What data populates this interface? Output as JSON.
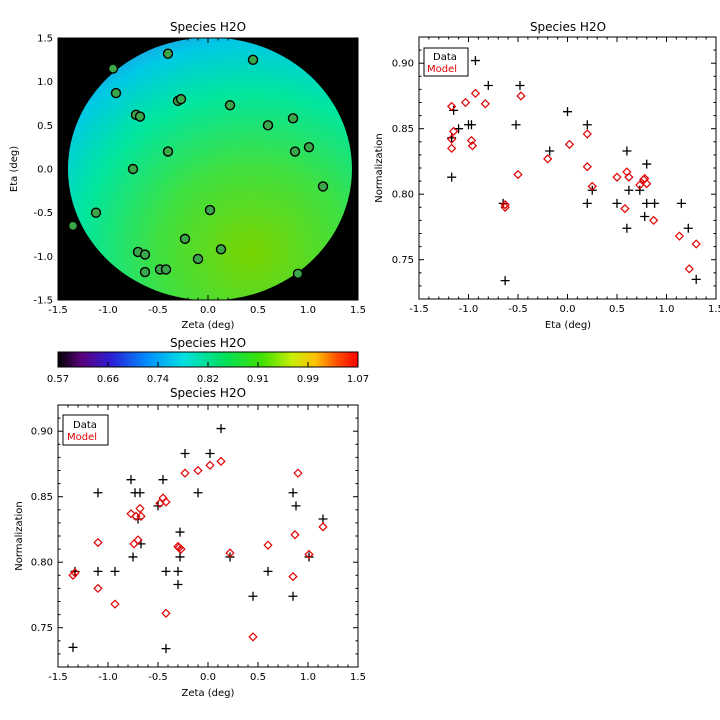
{
  "colors": {
    "data": "#000000",
    "model": "#e00000",
    "frame": "#000000"
  },
  "chart_data": [
    {
      "id": "map",
      "type": "heatmap",
      "title": "Species H2O",
      "xlabel": "Zeta (deg)",
      "ylabel": "Eta (deg)",
      "xlim": [
        -1.5,
        1.5
      ],
      "ylim": [
        -1.5,
        1.5
      ],
      "xticks": [
        "-1.5",
        "-1.0",
        "-0.5",
        "0.0",
        "0.5",
        "1.0",
        "1.5"
      ],
      "yticks": [
        "-1.5",
        "-1.0",
        "-0.5",
        "0.0",
        "0.5",
        "1.0",
        "1.5"
      ],
      "background": "black",
      "field_description": "normalization interpolated over the field, radius ~1.4 deg",
      "points": [
        [
          -1.35,
          -0.65
        ],
        [
          -1.12,
          -0.5
        ],
        [
          -0.95,
          1.15
        ],
        [
          -0.92,
          0.87
        ],
        [
          -0.75,
          0.0
        ],
        [
          -0.72,
          0.62
        ],
        [
          -0.68,
          0.6
        ],
        [
          -0.7,
          -0.95
        ],
        [
          -0.63,
          -0.98
        ],
        [
          -0.63,
          -1.18
        ],
        [
          -0.48,
          -1.15
        ],
        [
          -0.42,
          -1.15
        ],
        [
          -0.4,
          1.32
        ],
        [
          -0.4,
          0.2
        ],
        [
          -0.3,
          0.78
        ],
        [
          -0.27,
          0.8
        ],
        [
          -0.23,
          -0.8
        ],
        [
          -0.1,
          -1.03
        ],
        [
          0.02,
          -0.47
        ],
        [
          0.13,
          -0.92
        ],
        [
          0.22,
          0.73
        ],
        [
          0.45,
          1.25
        ],
        [
          0.6,
          0.5
        ],
        [
          0.85,
          0.58
        ],
        [
          0.87,
          0.2
        ],
        [
          1.01,
          0.25
        ],
        [
          1.15,
          -0.2
        ],
        [
          0.9,
          -1.2
        ]
      ]
    },
    {
      "id": "colorbar",
      "type": "colorbar",
      "title": "Species H2O",
      "range": [
        0.57,
        1.07
      ],
      "ticks": [
        "0.57",
        "0.66",
        "0.74",
        "0.82",
        "0.91",
        "0.99",
        "1.07"
      ]
    },
    {
      "id": "eta",
      "type": "scatter",
      "title": "Species H2O",
      "xlabel": "Eta (deg)",
      "ylabel": "Normalization",
      "xlim": [
        -1.5,
        1.5
      ],
      "ylim": [
        0.72,
        0.92
      ],
      "xticks": [
        "-1.5",
        "-1.0",
        "-0.5",
        "0.0",
        "0.5",
        "1.0",
        "1.5"
      ],
      "yticks": [
        "0.75",
        "0.80",
        "0.85",
        "0.90"
      ],
      "legend": [
        "Data",
        "Model"
      ],
      "series": [
        {
          "name": "Data",
          "marker": "plus",
          "points": [
            [
              -1.17,
              0.843
            ],
            [
              -1.17,
              0.813
            ],
            [
              -1.15,
              0.864
            ],
            [
              -1.1,
              0.85
            ],
            [
              -1.0,
              0.853
            ],
            [
              -0.97,
              0.853
            ],
            [
              -0.93,
              0.902
            ],
            [
              -0.8,
              0.883
            ],
            [
              -0.52,
              0.853
            ],
            [
              -0.48,
              0.883
            ],
            [
              -0.65,
              0.793
            ],
            [
              -0.63,
              0.734
            ],
            [
              0.0,
              0.863
            ],
            [
              -0.18,
              0.833
            ],
            [
              0.2,
              0.853
            ],
            [
              0.2,
              0.793
            ],
            [
              0.25,
              0.803
            ],
            [
              0.5,
              0.793
            ],
            [
              0.6,
              0.833
            ],
            [
              0.6,
              0.774
            ],
            [
              0.62,
              0.803
            ],
            [
              0.73,
              0.803
            ],
            [
              0.78,
              0.783
            ],
            [
              0.8,
              0.823
            ],
            [
              0.8,
              0.793
            ],
            [
              0.88,
              0.793
            ],
            [
              1.15,
              0.793
            ],
            [
              1.22,
              0.774
            ],
            [
              1.3,
              0.735
            ]
          ]
        },
        {
          "name": "Model",
          "marker": "diamond",
          "points": [
            [
              -1.17,
              0.867
            ],
            [
              -1.15,
              0.848
            ],
            [
              -1.17,
              0.835
            ],
            [
              -1.17,
              0.842
            ],
            [
              -1.03,
              0.87
            ],
            [
              -0.97,
              0.841
            ],
            [
              -0.96,
              0.837
            ],
            [
              -0.93,
              0.877
            ],
            [
              -0.83,
              0.869
            ],
            [
              -0.5,
              0.815
            ],
            [
              -0.47,
              0.875
            ],
            [
              -0.63,
              0.79
            ],
            [
              -0.63,
              0.792
            ],
            [
              0.02,
              0.838
            ],
            [
              -0.2,
              0.827
            ],
            [
              0.2,
              0.846
            ],
            [
              0.2,
              0.821
            ],
            [
              0.25,
              0.806
            ],
            [
              0.5,
              0.813
            ],
            [
              0.58,
              0.789
            ],
            [
              0.6,
              0.817
            ],
            [
              0.62,
              0.813
            ],
            [
              0.73,
              0.807
            ],
            [
              0.77,
              0.811
            ],
            [
              0.78,
              0.812
            ],
            [
              0.8,
              0.808
            ],
            [
              0.87,
              0.78
            ],
            [
              1.13,
              0.768
            ],
            [
              1.23,
              0.743
            ],
            [
              1.3,
              0.762
            ]
          ]
        }
      ]
    },
    {
      "id": "zeta",
      "type": "scatter",
      "title": "Species H2O",
      "xlabel": "Zeta (deg)",
      "ylabel": "Normalization",
      "xlim": [
        -1.5,
        1.5
      ],
      "ylim": [
        0.72,
        0.92
      ],
      "xticks": [
        "-1.5",
        "-1.0",
        "-0.5",
        "0.0",
        "0.5",
        "1.0",
        "1.5"
      ],
      "yticks": [
        "0.75",
        "0.80",
        "0.85",
        "0.90"
      ],
      "legend": [
        "Data",
        "Model"
      ],
      "series": [
        {
          "name": "Data",
          "marker": "plus",
          "points": [
            [
              -1.35,
              0.735
            ],
            [
              -1.33,
              0.793
            ],
            [
              -1.1,
              0.853
            ],
            [
              -1.1,
              0.793
            ],
            [
              -0.93,
              0.793
            ],
            [
              -0.77,
              0.863
            ],
            [
              -0.75,
              0.804
            ],
            [
              -0.73,
              0.853
            ],
            [
              -0.7,
              0.833
            ],
            [
              -0.68,
              0.853
            ],
            [
              -0.67,
              0.814
            ],
            [
              -0.5,
              0.843
            ],
            [
              -0.45,
              0.863
            ],
            [
              -0.42,
              0.793
            ],
            [
              -0.42,
              0.734
            ],
            [
              -0.3,
              0.783
            ],
            [
              -0.3,
              0.793
            ],
            [
              -0.28,
              0.823
            ],
            [
              -0.28,
              0.804
            ],
            [
              -0.23,
              0.883
            ],
            [
              -0.1,
              0.853
            ],
            [
              0.02,
              0.883
            ],
            [
              0.13,
              0.902
            ],
            [
              0.22,
              0.804
            ],
            [
              0.45,
              0.774
            ],
            [
              0.6,
              0.793
            ],
            [
              0.85,
              0.853
            ],
            [
              0.85,
              0.774
            ],
            [
              0.88,
              0.843
            ],
            [
              1.01,
              0.804
            ],
            [
              1.15,
              0.833
            ]
          ]
        },
        {
          "name": "Model",
          "marker": "diamond",
          "points": [
            [
              -1.35,
              0.79
            ],
            [
              -1.33,
              0.792
            ],
            [
              -1.1,
              0.815
            ],
            [
              -1.1,
              0.78
            ],
            [
              -0.93,
              0.768
            ],
            [
              -0.77,
              0.837
            ],
            [
              -0.74,
              0.814
            ],
            [
              -0.72,
              0.835
            ],
            [
              -0.7,
              0.817
            ],
            [
              -0.68,
              0.841
            ],
            [
              -0.67,
              0.835
            ],
            [
              -0.48,
              0.845
            ],
            [
              -0.45,
              0.849
            ],
            [
              -0.42,
              0.846
            ],
            [
              -0.42,
              0.761
            ],
            [
              -0.3,
              0.812
            ],
            [
              -0.29,
              0.811
            ],
            [
              -0.27,
              0.81
            ],
            [
              -0.23,
              0.868
            ],
            [
              -0.1,
              0.87
            ],
            [
              0.02,
              0.874
            ],
            [
              0.13,
              0.877
            ],
            [
              0.22,
              0.807
            ],
            [
              0.45,
              0.743
            ],
            [
              0.6,
              0.813
            ],
            [
              0.85,
              0.789
            ],
            [
              0.87,
              0.821
            ],
            [
              0.9,
              0.868
            ],
            [
              1.01,
              0.806
            ],
            [
              1.15,
              0.827
            ]
          ]
        }
      ]
    }
  ]
}
